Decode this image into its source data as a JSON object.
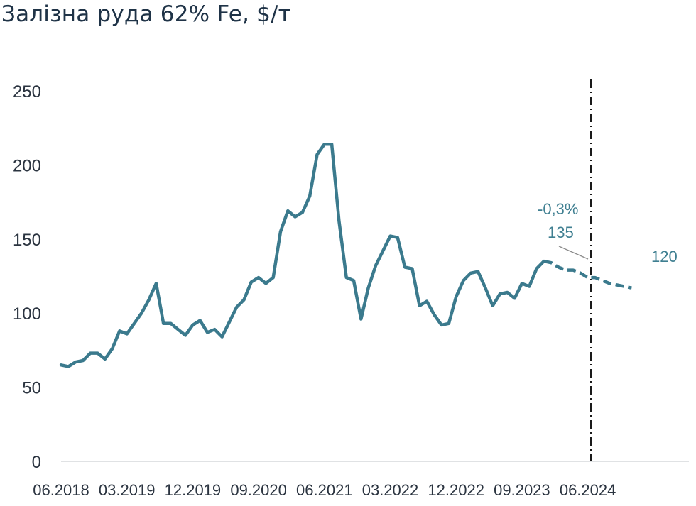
{
  "title": "Залізна руда 62% Fe, $/т",
  "chart_data": {
    "type": "line",
    "title": "Залізна руда 62% Fe, $/т",
    "ylim": [
      0,
      250
    ],
    "yticks": [
      0,
      50,
      100,
      150,
      200,
      250
    ],
    "xtick_labels": [
      "06.2018",
      "03.2019",
      "12.2019",
      "09.2020",
      "06.2021",
      "03.2022",
      "12.2022",
      "09.2023",
      "06.2024"
    ],
    "grid": false,
    "line_color": "#3b7a8d",
    "series": [
      {
        "style": "solid",
        "values": [
          65,
          64,
          67,
          68,
          73,
          73,
          69,
          76,
          88,
          86,
          93,
          100,
          109,
          120,
          93,
          93,
          89,
          85,
          92,
          95,
          87,
          89,
          84,
          94,
          104,
          109,
          121,
          124,
          120,
          124,
          155,
          169,
          165,
          168,
          179,
          207,
          214,
          214,
          162,
          124,
          122,
          96,
          117,
          132,
          142,
          152,
          151,
          131,
          130,
          105,
          108,
          99,
          92,
          93,
          111,
          122,
          127,
          128,
          117,
          105,
          113,
          114,
          110,
          120,
          118,
          130,
          135
        ]
      },
      {
        "style": "dashed",
        "values": [
          135,
          134,
          131,
          129,
          129,
          127,
          124,
          124,
          122,
          120,
          119,
          118,
          117
        ]
      }
    ],
    "annotations": [
      {
        "label": "-0,3%",
        "value": 135
      },
      {
        "label": "135",
        "value": 135
      },
      {
        "label": "120",
        "value": 120
      }
    ]
  }
}
